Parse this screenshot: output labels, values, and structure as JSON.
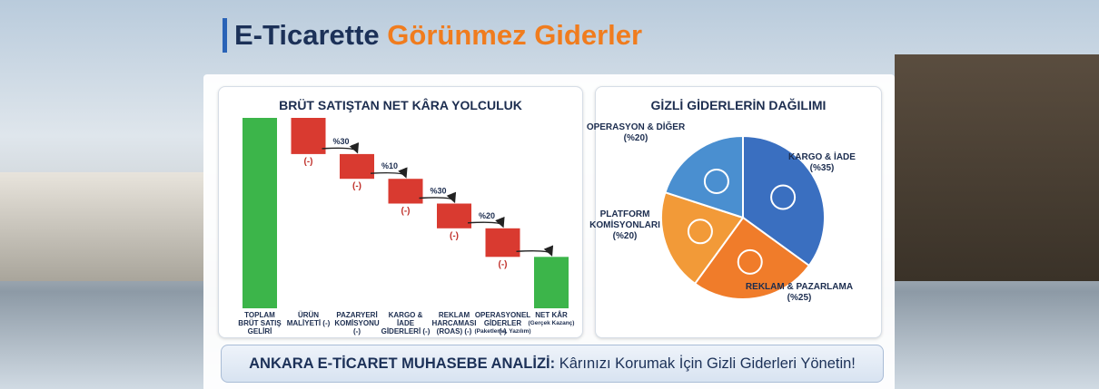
{
  "header": {
    "title_part1": "E-Ticarette",
    "title_part2": "Görünmez Giderler"
  },
  "chart_data": [
    {
      "type": "waterfall",
      "title": "BRÜT SATIŞTAN NET KÂRA YOLCULUK",
      "categories": [
        "TOPLAM\nBRÜT SATIŞ\nGELİRİ",
        "ÜRÜN\nMALİYETİ (-)",
        "PAZARYERİ\nKOMİSYONU\n(-)",
        "KARGO &\nİADE\nGİDERLERİ (-)",
        "REKLAM\nHARCAMASI\n(ROAS) (-)",
        "OPERASYONEL\nGİDERLER\n(-)",
        "NET KÂR"
      ],
      "category_notes": [
        null,
        null,
        null,
        null,
        null,
        "(Paketleme, Yazılım)",
        "(Gerçek Kazanç)"
      ],
      "values": [
        100,
        19,
        13,
        13,
        13,
        15,
        27
      ],
      "step_labels": [
        null,
        "(-)",
        "(-)",
        "(-)",
        "(-)",
        "(-)",
        null
      ],
      "annotations": [
        "%30",
        "%10",
        "%30",
        "%20"
      ],
      "colors": {
        "total": "#3cb54a",
        "expense": "#d93a30"
      }
    },
    {
      "type": "pie",
      "title": "GİZLİ GİDERLERİN DAĞILIMI",
      "categories": [
        "KARGO & İADE",
        "REKLAM & PAZARLAMA",
        "PLATFORM\nKOMİSYONLARI",
        "OPERASYON & DİĞER"
      ],
      "values": [
        35,
        25,
        20,
        20
      ],
      "value_labels": [
        "(%35)",
        "(%25)",
        "(%20)",
        "(%20)"
      ],
      "colors": [
        "#3a6fc0",
        "#f07c2a",
        "#f29a38",
        "#4a8fd0"
      ]
    }
  ],
  "footer": {
    "bold": "ANKARA E-TİCARET MUHASEBE ANALİZİ:",
    "text": "Kârınızı Korumak İçin Gizli Giderleri Yönetin!"
  }
}
